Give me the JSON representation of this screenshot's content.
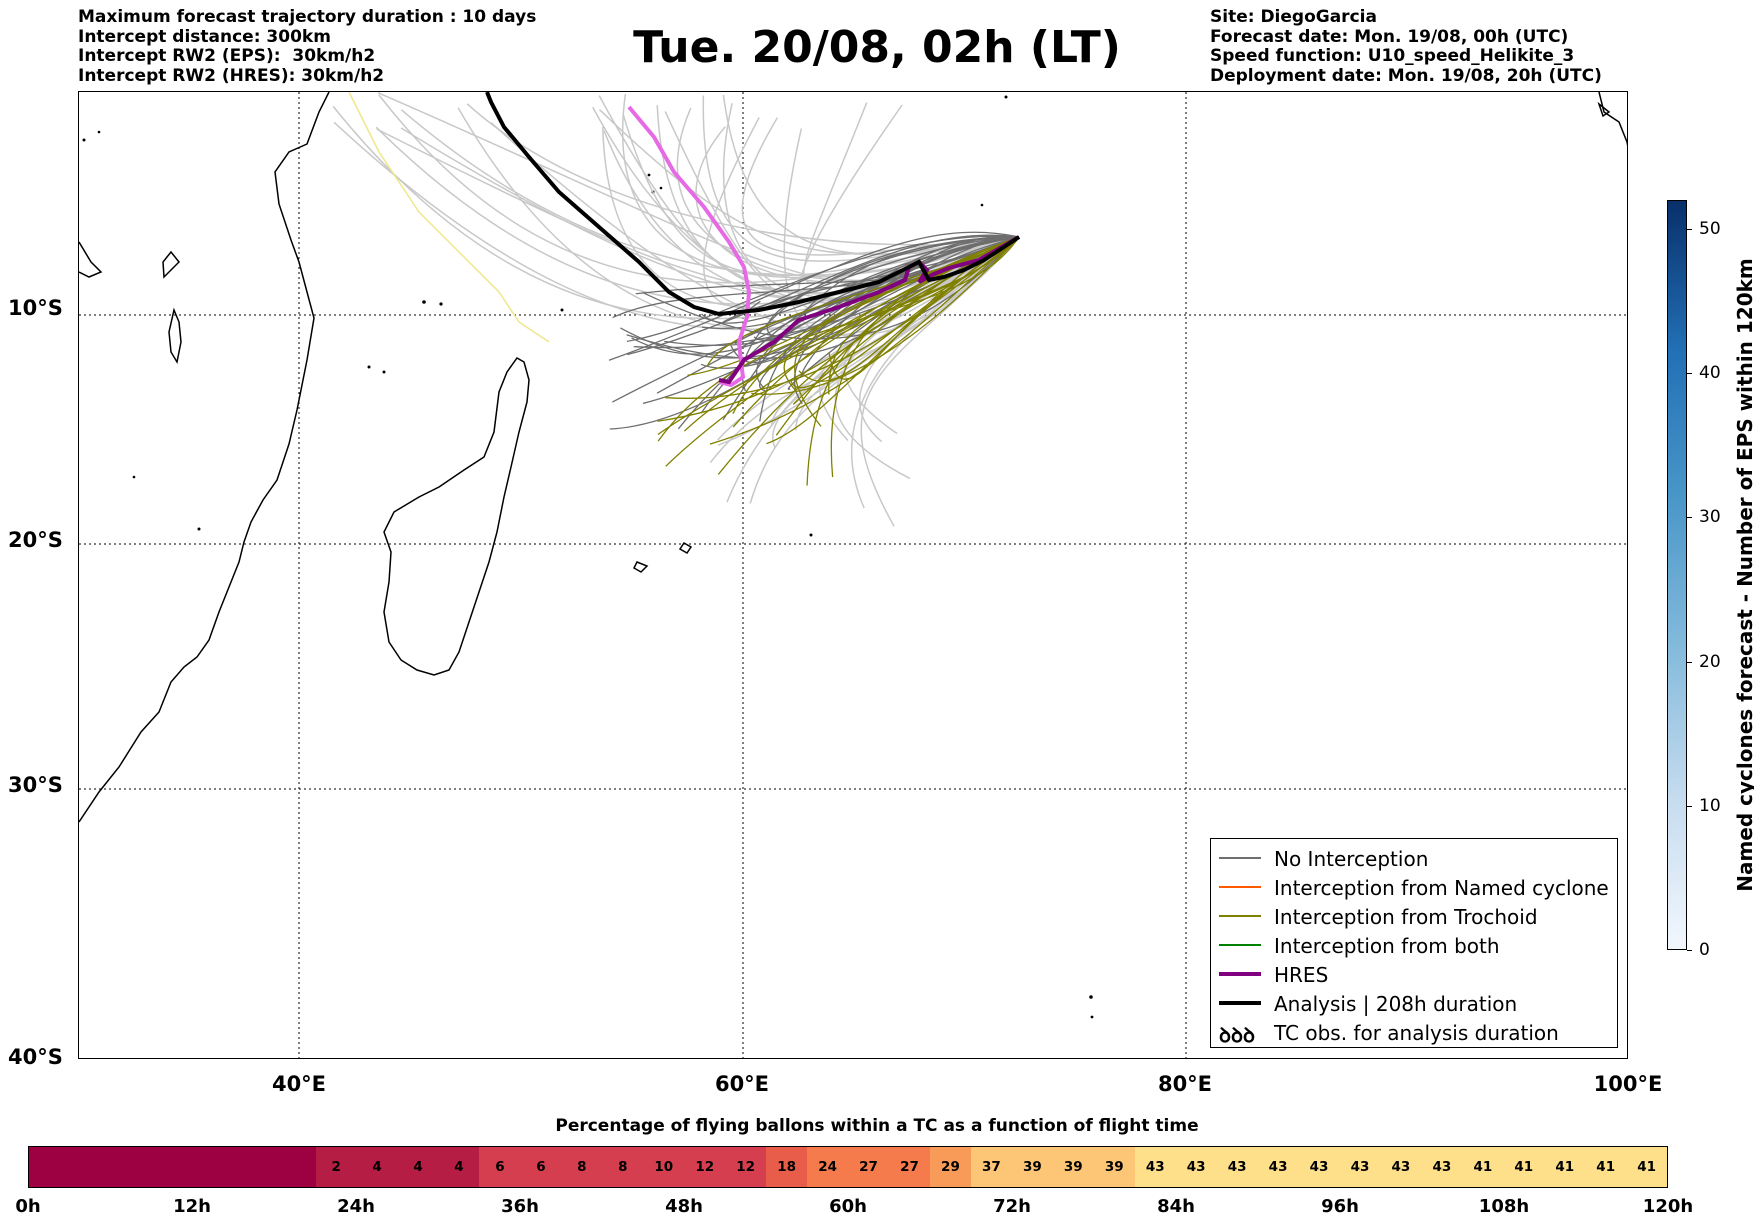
{
  "header": {
    "title": "Tue. 20/08, 02h (LT)",
    "left_lines": [
      "Maximum forecast trajectory duration : 10 days",
      "Intercept distance: 300km",
      "Intercept RW2 (EPS):  30km/h2",
      "Intercept RW2 (HRES): 30km/h2"
    ],
    "right_lines": [
      "Site: DiegoGarcia",
      "Forecast date: Mon. 19/08, 00h (UTC)",
      "Speed function: U10_speed_Helikite_3",
      "Deployment date: Mon. 19/08, 20h (UTC)"
    ]
  },
  "map": {
    "lat_labels": [
      "10°S",
      "20°S",
      "30°S",
      "40°S"
    ],
    "lon_labels": [
      "40°E",
      "60°E",
      "80°E",
      "100°E"
    ],
    "colors": {
      "no_interception": "#6e6e6e",
      "eps_faded": "#c8c8c8",
      "named_cyclone": "#ff5a00",
      "trochoid": "#808000",
      "both": "#008000",
      "hres": "#800080",
      "hres_faded": "#e66ae6",
      "analysis": "#000000",
      "yellow_track": "#f0e68c"
    }
  },
  "legend": {
    "items": [
      {
        "label": "No Interception",
        "color": "#6e6e6e",
        "width": 1.5
      },
      {
        "label": "Interception from Named cyclone",
        "color": "#ff5a00",
        "width": 1.5
      },
      {
        "label": "Interception from Trochoid",
        "color": "#808000",
        "width": 1.5
      },
      {
        "label": "Interception from both",
        "color": "#008000",
        "width": 1.5
      },
      {
        "label": "HRES",
        "color": "#800080",
        "width": 4
      },
      {
        "label": "Analysis | 208h duration",
        "color": "#000000",
        "width": 4
      }
    ],
    "tc_symbol": "ꝺꝺꝺ",
    "tc_label": "TC obs. for analysis duration"
  },
  "colorbar_right": {
    "title": "Named cyclones forecast - Number of EPS within 120km",
    "ticks": [
      "0",
      "10",
      "20",
      "30",
      "40",
      "50"
    ]
  },
  "bottom_bar": {
    "title": "Percentage of flying ballons within a TC as a function of flight time",
    "values": [
      "",
      "",
      "",
      "",
      "",
      "",
      "",
      "2",
      "4",
      "4",
      "4",
      "6",
      "6",
      "8",
      "8",
      "10",
      "12",
      "12",
      "18",
      "24",
      "27",
      "27",
      "29",
      "37",
      "39",
      "39",
      "39",
      "43",
      "43",
      "43",
      "43",
      "43",
      "43",
      "43",
      "43",
      "41",
      "41",
      "41",
      "41",
      "41"
    ],
    "hour_labels": [
      "0h",
      "12h",
      "24h",
      "36h",
      "48h",
      "60h",
      "72h",
      "84h",
      "96h",
      "108h",
      "120h"
    ]
  }
}
